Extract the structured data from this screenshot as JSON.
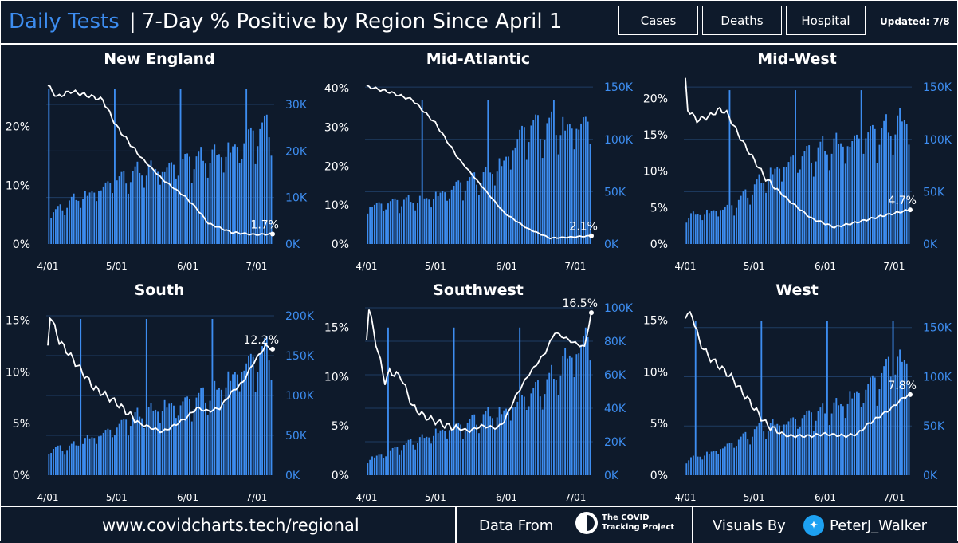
{
  "header": {
    "title_main": "Daily Tests",
    "title_sep": "|",
    "title_sub": "7-Day % Positive by Region Since April 1",
    "nav": [
      {
        "label": "Cases"
      },
      {
        "label": "Deaths"
      },
      {
        "label": "Hospital"
      }
    ],
    "updated": "Updated: 7/8"
  },
  "footer": {
    "url": "www.covidcharts.tech/regional",
    "data_from": "Data From",
    "source_line1": "The COVID",
    "source_line2": "Tracking Project",
    "visuals_by": "Visuals By",
    "handle": "PeterJ_Walker"
  },
  "colors": {
    "bar": "#3d8df0",
    "line": "#ffffff",
    "background": "#0e1a2b",
    "accent": "#3d8df0"
  },
  "chart_data": [
    {
      "type": "bar+line",
      "title": "New England",
      "x_ticks": [
        "4/01",
        "5/01",
        "6/01",
        "7/01"
      ],
      "left_axis": {
        "ticks": [
          "0%",
          "10%",
          "20%"
        ],
        "tick_values": [
          0,
          10,
          20
        ],
        "range": [
          0,
          28.5
        ]
      },
      "right_axis": {
        "ticks": [
          "0K",
          "10K",
          "20K",
          "30K"
        ],
        "tick_values": [
          0,
          10000,
          20000,
          30000
        ],
        "range": [
          0,
          36000
        ]
      },
      "bars": {
        "peak": 34000,
        "shape": [
          [
            0,
            0.18
          ],
          [
            10,
            0.27
          ],
          [
            20,
            0.33
          ],
          [
            30,
            0.4
          ],
          [
            40,
            0.46
          ],
          [
            50,
            0.47
          ],
          [
            60,
            0.52
          ],
          [
            70,
            0.55
          ],
          [
            80,
            0.58
          ],
          [
            90,
            0.69
          ],
          [
            98,
            0.74
          ]
        ]
      },
      "line": [
        [
          0,
          27
        ],
        [
          4,
          25
        ],
        [
          10,
          26
        ],
        [
          20,
          25
        ],
        [
          24,
          24.5
        ],
        [
          30,
          20
        ],
        [
          40,
          15
        ],
        [
          50,
          11
        ],
        [
          60,
          8
        ],
        [
          65,
          6
        ],
        [
          70,
          3.5
        ],
        [
          80,
          2
        ],
        [
          90,
          1.6
        ],
        [
          98,
          1.7
        ]
      ],
      "label": "1.7%",
      "label_value": 1.7
    },
    {
      "type": "bar+line",
      "title": "Mid-Atlantic",
      "x_ticks": [
        "4/01",
        "5/01",
        "6/01",
        "7/01"
      ],
      "left_axis": {
        "ticks": [
          "0%",
          "10%",
          "20%",
          "30%",
          "40%"
        ],
        "tick_values": [
          0,
          10,
          20,
          30,
          40
        ],
        "range": [
          0,
          43
        ]
      },
      "right_axis": {
        "ticks": [
          "0K",
          "50K",
          "100K",
          "150K"
        ],
        "tick_values": [
          0,
          50000,
          100000,
          150000
        ],
        "range": [
          0,
          160000
        ]
      },
      "bars": {
        "peak": 140000,
        "shape": [
          [
            0,
            0.26
          ],
          [
            10,
            0.28
          ],
          [
            20,
            0.3
          ],
          [
            30,
            0.32
          ],
          [
            40,
            0.4
          ],
          [
            50,
            0.45
          ],
          [
            60,
            0.55
          ],
          [
            70,
            0.8
          ],
          [
            80,
            0.78
          ],
          [
            90,
            0.8
          ],
          [
            98,
            0.82
          ]
        ]
      },
      "line": [
        [
          0,
          40.5
        ],
        [
          10,
          39
        ],
        [
          20,
          37
        ],
        [
          30,
          31
        ],
        [
          40,
          22
        ],
        [
          50,
          15
        ],
        [
          60,
          8
        ],
        [
          70,
          4
        ],
        [
          80,
          1.5
        ],
        [
          90,
          1.8
        ],
        [
          98,
          2.1
        ]
      ],
      "label": "2.1%",
      "label_value": 2.1
    },
    {
      "type": "bar+line",
      "title": "Mid-West",
      "x_ticks": [
        "4/01",
        "5/01",
        "6/01",
        "7/01"
      ],
      "left_axis": {
        "ticks": [
          "0%",
          "5%",
          "10%",
          "15%",
          "20%"
        ],
        "tick_values": [
          0,
          5,
          10,
          15,
          20
        ],
        "range": [
          0,
          23
        ]
      },
      "right_axis": {
        "ticks": [
          "0K",
          "50K",
          "100K",
          "150K"
        ],
        "tick_values": [
          0,
          50000,
          100000,
          150000
        ],
        "range": [
          0,
          160000
        ]
      },
      "bars": {
        "peak": 150000,
        "shape": [
          [
            0,
            0.18
          ],
          [
            10,
            0.2
          ],
          [
            20,
            0.24
          ],
          [
            30,
            0.36
          ],
          [
            40,
            0.48
          ],
          [
            50,
            0.55
          ],
          [
            60,
            0.6
          ],
          [
            70,
            0.64
          ],
          [
            80,
            0.68
          ],
          [
            90,
            0.74
          ],
          [
            98,
            0.8
          ]
        ]
      },
      "line": [
        [
          0,
          22.5
        ],
        [
          1,
          18.5
        ],
        [
          5,
          17
        ],
        [
          10,
          17.5
        ],
        [
          15,
          18.5
        ],
        [
          18,
          18
        ],
        [
          25,
          14
        ],
        [
          35,
          9
        ],
        [
          45,
          6
        ],
        [
          55,
          3.5
        ],
        [
          65,
          2.3
        ],
        [
          75,
          3
        ],
        [
          85,
          3.8
        ],
        [
          98,
          4.7
        ]
      ],
      "label": "4.7%",
      "label_value": 4.7
    },
    {
      "type": "bar+line",
      "title": "South",
      "x_ticks": [
        "4/01",
        "5/01",
        "6/01",
        "7/01"
      ],
      "left_axis": {
        "ticks": [
          "0%",
          "5%",
          "10%",
          "15%"
        ],
        "tick_values": [
          0,
          5,
          10,
          15
        ],
        "range": [
          0,
          16.2
        ]
      },
      "right_axis": {
        "ticks": [
          "0K",
          "50K",
          "100K",
          "150K",
          "200K"
        ],
        "tick_values": [
          0,
          50000,
          100000,
          150000,
          200000
        ],
        "range": [
          0,
          210000
        ]
      },
      "bars": {
        "peak": 200000,
        "shape": [
          [
            0,
            0.16
          ],
          [
            10,
            0.18
          ],
          [
            20,
            0.24
          ],
          [
            30,
            0.3
          ],
          [
            40,
            0.38
          ],
          [
            50,
            0.42
          ],
          [
            60,
            0.45
          ],
          [
            70,
            0.5
          ],
          [
            80,
            0.6
          ],
          [
            90,
            0.72
          ],
          [
            98,
            0.8
          ]
        ]
      },
      "line": [
        [
          0,
          12.5
        ],
        [
          1,
          15.5
        ],
        [
          5,
          13
        ],
        [
          10,
          11.5
        ],
        [
          15,
          10
        ],
        [
          20,
          8.5
        ],
        [
          30,
          7
        ],
        [
          40,
          5
        ],
        [
          50,
          4.2
        ],
        [
          55,
          4.8
        ],
        [
          60,
          5.5
        ],
        [
          65,
          6.5
        ],
        [
          70,
          6.2
        ],
        [
          75,
          6.5
        ],
        [
          80,
          8
        ],
        [
          85,
          9
        ],
        [
          90,
          11
        ],
        [
          95,
          12.5
        ],
        [
          98,
          12.2
        ]
      ],
      "label": "12.2%",
      "label_value": 12.2
    },
    {
      "type": "bar+line",
      "title": "Southwest",
      "x_ticks": [
        "4/01",
        "5/01",
        "6/01",
        "7/01"
      ],
      "left_axis": {
        "ticks": [
          "0%",
          "5%",
          "10%",
          "15%"
        ],
        "tick_values": [
          0,
          5,
          10,
          15
        ],
        "range": [
          0,
          17
        ]
      },
      "right_axis": {
        "ticks": [
          "0K",
          "20K",
          "40K",
          "60K",
          "80K",
          "100K"
        ],
        "tick_values": [
          0,
          20000,
          40000,
          60000,
          80000,
          100000
        ],
        "range": [
          0,
          100000
        ]
      },
      "bars": {
        "peak": 90000,
        "shape": [
          [
            0,
            0.1
          ],
          [
            10,
            0.16
          ],
          [
            20,
            0.22
          ],
          [
            30,
            0.28
          ],
          [
            40,
            0.32
          ],
          [
            50,
            0.38
          ],
          [
            60,
            0.42
          ],
          [
            70,
            0.52
          ],
          [
            80,
            0.62
          ],
          [
            90,
            0.8
          ],
          [
            98,
            0.92
          ]
        ]
      },
      "line": [
        [
          0,
          14
        ],
        [
          1,
          17
        ],
        [
          4,
          13.5
        ],
        [
          8,
          9.5
        ],
        [
          10,
          10.5
        ],
        [
          15,
          10
        ],
        [
          20,
          7
        ],
        [
          25,
          6
        ],
        [
          35,
          5
        ],
        [
          45,
          4.5
        ],
        [
          50,
          5
        ],
        [
          57,
          4.8
        ],
        [
          60,
          5.5
        ],
        [
          65,
          8
        ],
        [
          70,
          10
        ],
        [
          78,
          12.5
        ],
        [
          82,
          14.5
        ],
        [
          86,
          14
        ],
        [
          90,
          13.5
        ],
        [
          95,
          13
        ],
        [
          98,
          16.5
        ]
      ],
      "label": "16.5%",
      "label_value": 16.5
    },
    {
      "type": "bar+line",
      "title": "West",
      "x_ticks": [
        "4/01",
        "5/01",
        "6/01",
        "7/01"
      ],
      "left_axis": {
        "ticks": [
          "0%",
          "5%",
          "10%",
          "15%"
        ],
        "tick_values": [
          0,
          5,
          10,
          15
        ],
        "range": [
          0,
          16.2
        ]
      },
      "right_axis": {
        "ticks": [
          "0K",
          "50K",
          "100K",
          "150K"
        ],
        "tick_values": [
          0,
          50000,
          100000,
          150000
        ],
        "range": [
          0,
          170000
        ]
      },
      "bars": {
        "peak": 160000,
        "shape": [
          [
            0,
            0.1
          ],
          [
            10,
            0.14
          ],
          [
            20,
            0.2
          ],
          [
            30,
            0.28
          ],
          [
            40,
            0.32
          ],
          [
            50,
            0.36
          ],
          [
            60,
            0.4
          ],
          [
            70,
            0.46
          ],
          [
            80,
            0.56
          ],
          [
            90,
            0.68
          ],
          [
            98,
            0.75
          ]
        ]
      },
      "line": [
        [
          0,
          15.5
        ],
        [
          3,
          15.5
        ],
        [
          6,
          13
        ],
        [
          10,
          11.5
        ],
        [
          15,
          10.5
        ],
        [
          20,
          9.5
        ],
        [
          25,
          8
        ],
        [
          30,
          6.5
        ],
        [
          35,
          5
        ],
        [
          40,
          4.2
        ],
        [
          45,
          3.8
        ],
        [
          55,
          3.8
        ],
        [
          60,
          4
        ],
        [
          70,
          3.8
        ],
        [
          75,
          4
        ],
        [
          80,
          5
        ],
        [
          90,
          6.5
        ],
        [
          95,
          7.5
        ],
        [
          98,
          7.8
        ]
      ],
      "label": "7.8%",
      "label_value": 7.8
    }
  ]
}
